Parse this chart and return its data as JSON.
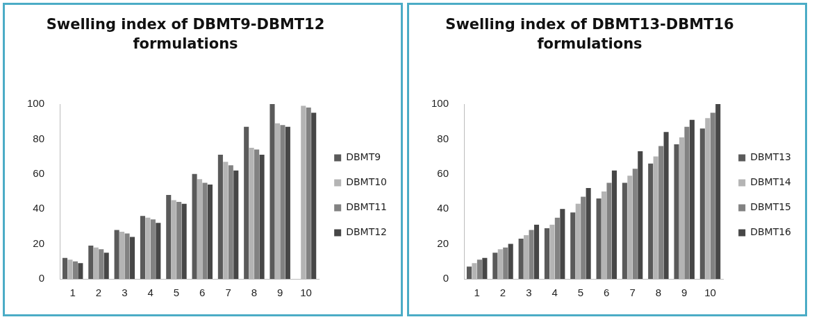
{
  "chart_data": [
    {
      "type": "bar",
      "title": "Swelling index of DBMT9-DBMT12 formulations",
      "categories": [
        "1",
        "2",
        "3",
        "4",
        "5",
        "6",
        "7",
        "8",
        "9",
        "10"
      ],
      "ylim": [
        0,
        100
      ],
      "yticks": [
        0,
        20,
        40,
        60,
        80,
        100
      ],
      "grid": false,
      "legend": "right",
      "series": [
        {
          "name": "DBMT9",
          "color": "#5a5a5a",
          "values": [
            12,
            19,
            28,
            36,
            48,
            60,
            71,
            87,
            100,
            null
          ]
        },
        {
          "name": "DBMT10",
          "color": "#b4b4b4",
          "values": [
            11,
            18,
            27,
            35,
            45,
            57,
            67,
            75,
            89,
            99
          ]
        },
        {
          "name": "DBMT11",
          "color": "#828282",
          "values": [
            10,
            17,
            26,
            34,
            44,
            55,
            65,
            74,
            88,
            98
          ]
        },
        {
          "name": "DBMT12",
          "color": "#474747",
          "values": [
            9,
            15,
            24,
            32,
            43,
            54,
            62,
            71,
            87,
            95
          ]
        }
      ]
    },
    {
      "type": "bar",
      "title": "Swelling index of DBMT13-DBMT16 formulations",
      "categories": [
        "1",
        "2",
        "3",
        "4",
        "5",
        "6",
        "7",
        "8",
        "9",
        "10"
      ],
      "ylim": [
        0,
        100
      ],
      "yticks": [
        0,
        20,
        40,
        60,
        80,
        100
      ],
      "grid": false,
      "legend": "right",
      "series": [
        {
          "name": "DBMT13",
          "color": "#5a5a5a",
          "values": [
            7,
            15,
            23,
            29,
            38,
            46,
            55,
            66,
            77,
            86
          ]
        },
        {
          "name": "DBMT14",
          "color": "#b4b4b4",
          "values": [
            9,
            17,
            25,
            31,
            43,
            50,
            59,
            70,
            81,
            92
          ]
        },
        {
          "name": "DBMT15",
          "color": "#828282",
          "values": [
            11,
            18,
            28,
            35,
            47,
            55,
            63,
            76,
            87,
            95
          ]
        },
        {
          "name": "DBMT16",
          "color": "#474747",
          "values": [
            12,
            20,
            31,
            40,
            52,
            62,
            73,
            84,
            91,
            100
          ]
        }
      ]
    }
  ]
}
